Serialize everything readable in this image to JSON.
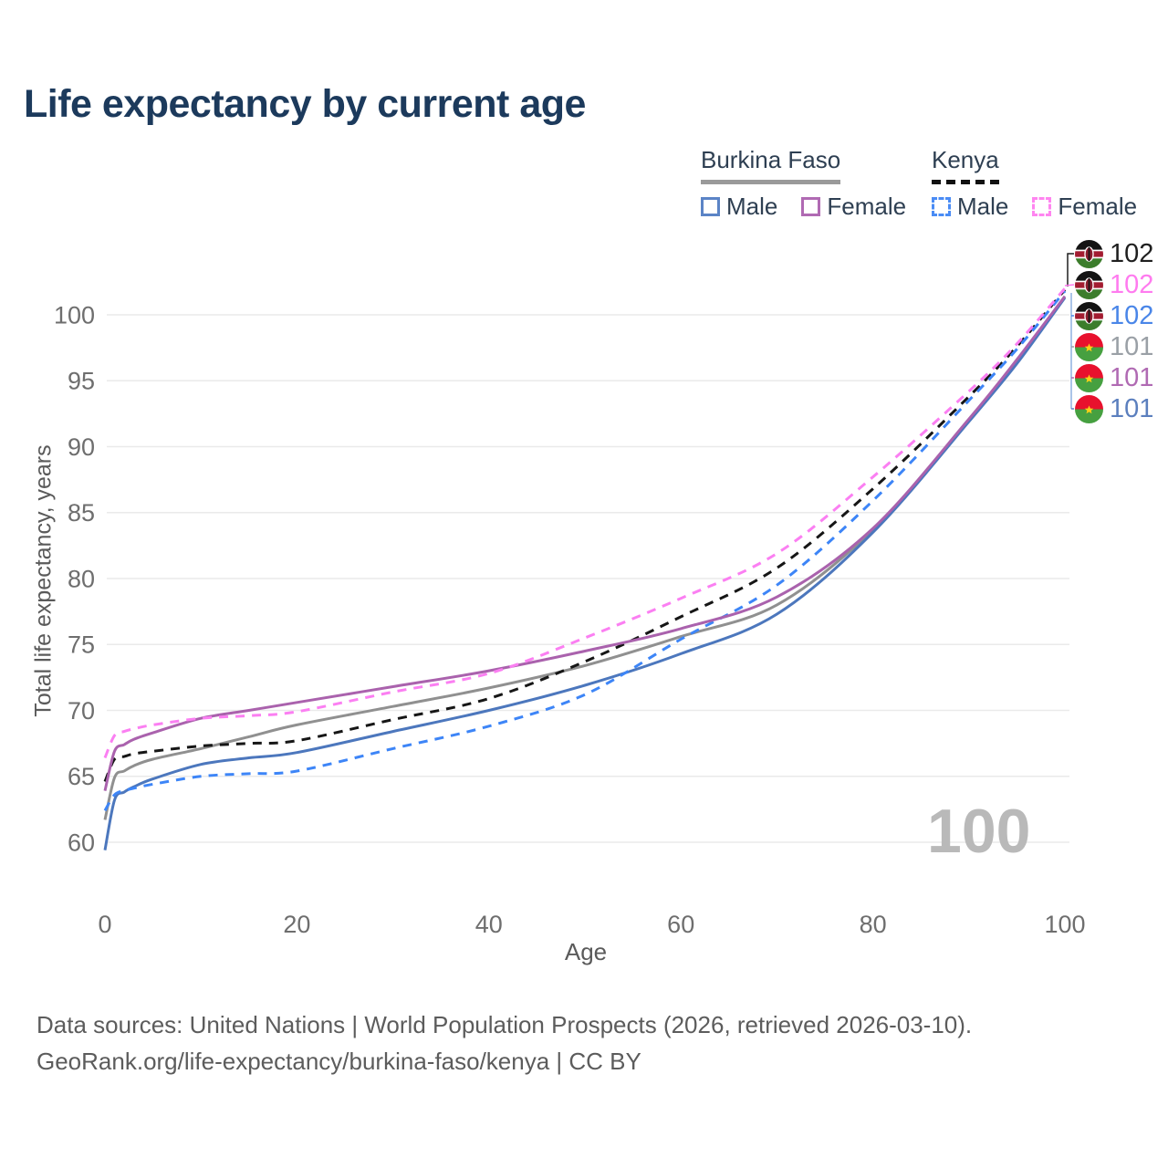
{
  "title": "Life expectancy by current age",
  "legend": {
    "groups": [
      {
        "label": "Burkina Faso",
        "line_style": "solid",
        "underline_color": "#9a9a9a",
        "items": [
          {
            "label": "Male",
            "color": "#5b84c6",
            "dashed": false
          },
          {
            "label": "Female",
            "color": "#b06ab3",
            "dashed": false
          }
        ]
      },
      {
        "label": "Kenya",
        "line_style": "dashed",
        "underline_color": "#111111",
        "items": [
          {
            "label": "Male",
            "color": "#4a8cf5",
            "dashed": true
          },
          {
            "label": "Female",
            "color": "#ff85f0",
            "dashed": true
          }
        ]
      }
    ]
  },
  "watermark": "100",
  "end_labels": [
    {
      "flag": "kenya",
      "series": "Kenya Both sexes",
      "value": "102",
      "color": "#1f1f1f"
    },
    {
      "flag": "kenya",
      "series": "Kenya Female",
      "value": "102",
      "color": "#ff7bef"
    },
    {
      "flag": "kenya",
      "series": "Kenya Male",
      "value": "102",
      "color": "#4a86e8"
    },
    {
      "flag": "burkina-faso",
      "series": "Burkina Faso Both sexes",
      "value": "101",
      "color": "#9aa0a6"
    },
    {
      "flag": "burkina-faso",
      "series": "Burkina Faso Female",
      "value": "101",
      "color": "#b06ab3"
    },
    {
      "flag": "burkina-faso",
      "series": "Burkina Faso Male",
      "value": "101",
      "color": "#5b7fbe"
    }
  ],
  "footer": {
    "line1": "Data sources: United Nations | World Population Prospects (2026, retrieved 2026-03-10).",
    "line2": "GeoRank.org/life-expectancy/burkina-faso/kenya | CC BY"
  },
  "chart_data": {
    "type": "line",
    "title": "Life expectancy by current age",
    "xlabel": "Age",
    "ylabel": "Total life expectancy, years",
    "xlim": [
      0,
      100
    ],
    "ylim": [
      58,
      103
    ],
    "xticks": [
      0,
      20,
      40,
      60,
      80,
      100
    ],
    "yticks": [
      60,
      65,
      70,
      75,
      80,
      85,
      90,
      95,
      100
    ],
    "grid": "horizontal-only",
    "legend_position": "top-right",
    "x": [
      0,
      1,
      2,
      3,
      5,
      10,
      15,
      20,
      30,
      40,
      50,
      60,
      70,
      80,
      90,
      95,
      100
    ],
    "series": [
      {
        "id": "burkina-faso-both",
        "name": "Burkina Faso Both sexes",
        "country": "Burkina Faso",
        "sex": "Both",
        "color": "#909090",
        "dash": false,
        "values": [
          61.7,
          64.9,
          65.4,
          65.8,
          66.3,
          67.1,
          68.0,
          68.9,
          70.3,
          71.7,
          73.4,
          75.6,
          78.0,
          83.7,
          92.0,
          96.5,
          101.4
        ]
      },
      {
        "id": "kenya-both",
        "name": "Kenya Both sexes",
        "country": "Kenya",
        "sex": "Both",
        "color": "#161616",
        "dash": true,
        "values": [
          64.6,
          66.3,
          66.5,
          66.7,
          66.9,
          67.3,
          67.5,
          67.7,
          69.3,
          70.9,
          73.7,
          77.1,
          80.8,
          86.8,
          93.8,
          97.6,
          101.9
        ]
      },
      {
        "id": "burkina-faso-male",
        "name": "Burkina Faso Male",
        "country": "Burkina Faso",
        "sex": "Male",
        "color": "#4c77bd",
        "dash": false,
        "values": [
          59.4,
          63.2,
          63.8,
          64.2,
          64.8,
          65.9,
          66.4,
          66.8,
          68.4,
          70.0,
          71.9,
          74.3,
          77.3,
          83.5,
          91.9,
          96.3,
          101.3
        ]
      },
      {
        "id": "kenya-male",
        "name": "Kenya Male",
        "country": "Kenya",
        "sex": "Male",
        "color": "#3d85f7",
        "dash": true,
        "values": [
          62.4,
          63.6,
          63.9,
          64.1,
          64.4,
          65.0,
          65.2,
          65.4,
          67.1,
          68.8,
          71.2,
          75.4,
          79.5,
          85.9,
          93.5,
          97.4,
          101.8
        ]
      },
      {
        "id": "burkina-faso-female",
        "name": "Burkina Faso Female",
        "country": "Burkina Faso",
        "sex": "Female",
        "color": "#aa62ad",
        "dash": false,
        "values": [
          63.9,
          66.9,
          67.4,
          67.8,
          68.3,
          69.4,
          70.0,
          70.6,
          71.8,
          73.0,
          74.5,
          76.2,
          78.6,
          83.8,
          92.1,
          96.6,
          101.4
        ]
      },
      {
        "id": "kenya-female",
        "name": "Kenya Female",
        "country": "Kenya",
        "sex": "Female",
        "color": "#fb7ff2",
        "dash": true,
        "values": [
          66.4,
          68.1,
          68.4,
          68.6,
          68.9,
          69.4,
          69.6,
          69.9,
          71.4,
          72.8,
          75.5,
          78.5,
          81.9,
          87.7,
          94.2,
          97.8,
          102.0
        ]
      }
    ],
    "end_values": {
      "kenya": 102,
      "burkina_faso": 101
    }
  }
}
